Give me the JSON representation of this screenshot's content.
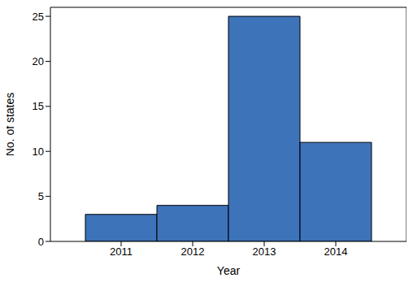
{
  "chart_data": {
    "type": "bar",
    "categories": [
      "2011",
      "2012",
      "2013",
      "2014"
    ],
    "values": [
      3,
      4,
      25,
      11
    ],
    "color": "#3d73b9",
    "x_label": "Year",
    "y_label": "No. of states",
    "ylim": [
      0,
      26
    ],
    "yticks": [
      0,
      5,
      10,
      15,
      20,
      25
    ],
    "grid": false
  }
}
